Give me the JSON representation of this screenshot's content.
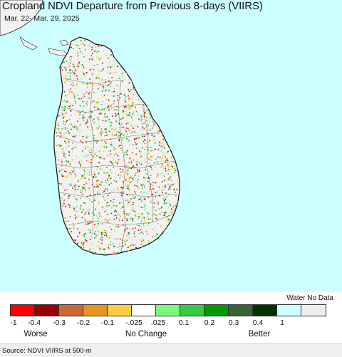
{
  "title": "Cropland NDVI Departure from Previous 8-days (VIIRS)",
  "date_range": "Mar. 22- Mar. 29, 2025",
  "legend": {
    "water_label": "Water No Data",
    "colors": [
      "#ff0000",
      "#990000",
      "#cc6633",
      "#e8951e",
      "#ffcc44",
      "#ffffff",
      "#77ff77",
      "#33cc44",
      "#009900",
      "#336633",
      "#003300",
      "#ccffff",
      "#eeeeee"
    ],
    "tick_labels": [
      "-1",
      "-0.4",
      "-0.3",
      "-0.2",
      "-0.1",
      "-.025",
      ".025",
      "0.1",
      "0.2",
      "0.3",
      "0.4",
      "1"
    ],
    "category_labels": [
      "Worse",
      "No Change",
      "Better"
    ]
  },
  "source": "Source: NDVI VIIRS at 500-m",
  "map": {
    "water_color": "#ccffff",
    "land_color": "#f2f2f2",
    "border_color": "#222222"
  }
}
